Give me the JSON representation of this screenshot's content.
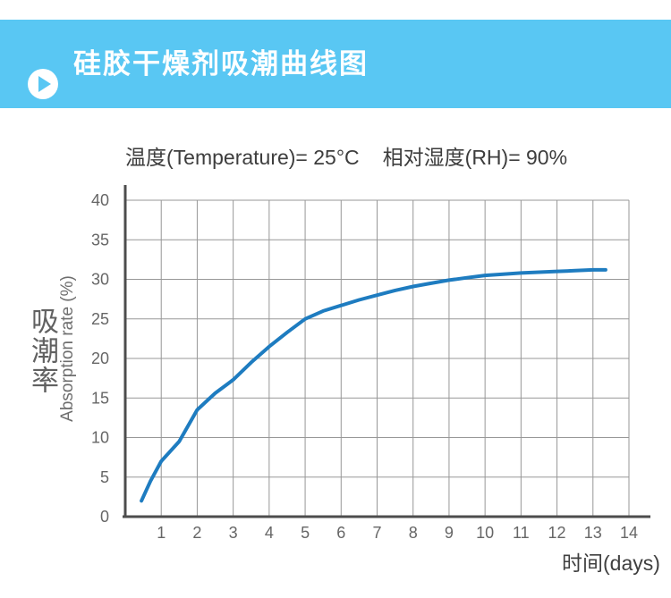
{
  "header": {
    "title": "硅胶干燥剂吸潮曲线图",
    "bg_color": "#59c7f3",
    "play_icon": "play-icon"
  },
  "chart_data": {
    "type": "line",
    "title": "温度(Temperature)= 25°C  相对湿度(RH)= 90%",
    "conditions": {
      "temperature": "温度(Temperature)= 25°C",
      "humidity": "相对湿度(RH)= 90%"
    },
    "xlabel": "时间(days)",
    "ylabel_cn": "吸潮率",
    "ylabel_en": "Absorption rate (%)",
    "xlim": [
      0,
      14
    ],
    "ylim": [
      0,
      40
    ],
    "x_ticks": [
      1,
      2,
      3,
      4,
      5,
      6,
      7,
      8,
      9,
      10,
      11,
      12,
      13,
      14
    ],
    "y_ticks": [
      0,
      5,
      10,
      15,
      20,
      25,
      30,
      35,
      40
    ],
    "grid": true,
    "legend": "none",
    "colors": {
      "line": "#1e7cc0",
      "grid": "#979797",
      "axis": "#4d4d4d",
      "tick_label": "#666666"
    },
    "series": [
      {
        "name": "absorption-rate",
        "x": [
          0.45,
          0.7,
          1.0,
          1.5,
          2.0,
          2.5,
          3.0,
          3.5,
          4.0,
          4.5,
          5.0,
          5.5,
          6.0,
          6.5,
          7.0,
          7.5,
          8.0,
          8.5,
          9.0,
          9.5,
          10.0,
          10.5,
          11.0,
          11.5,
          12.0,
          12.5,
          13.0,
          13.35
        ],
        "y": [
          2.0,
          4.5,
          7.0,
          9.5,
          13.5,
          15.6,
          17.3,
          19.5,
          21.5,
          23.3,
          25.0,
          26.0,
          26.7,
          27.4,
          28.0,
          28.6,
          29.1,
          29.5,
          29.9,
          30.2,
          30.5,
          30.65,
          30.8,
          30.9,
          31.0,
          31.1,
          31.2,
          31.2
        ]
      }
    ]
  }
}
